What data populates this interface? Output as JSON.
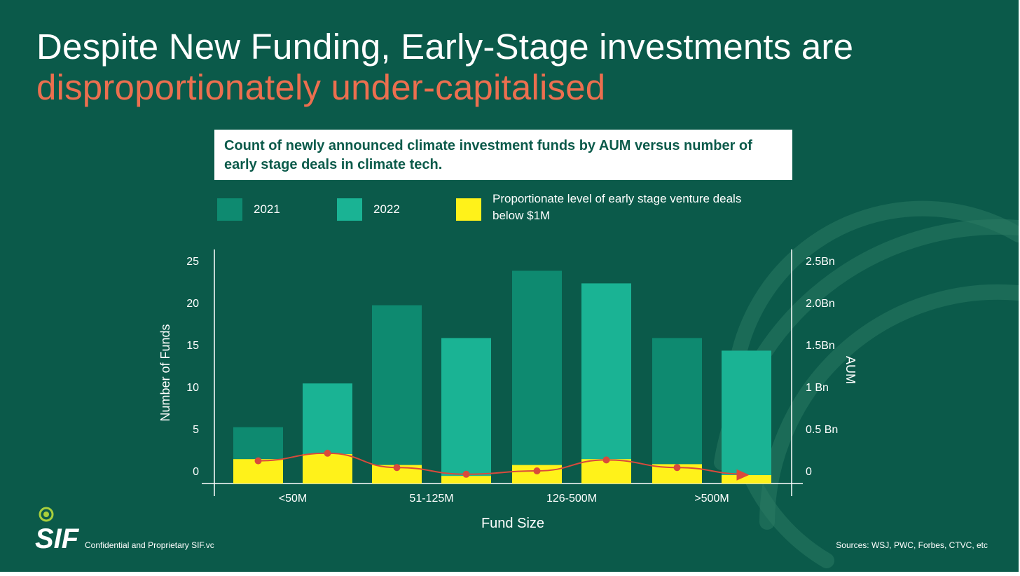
{
  "slide": {
    "title_line1": "Despite New Funding, Early-Stage investments are",
    "title_line2": "disproportionately under-capitalised",
    "subtitle": "Count of newly announced climate investment funds by AUM versus number of early stage deals in climate tech.",
    "footer_left": "Confidential and Proprietary SIF.vc",
    "footer_right": "Sources: WSJ, PWC, Forbes, CTVC, etc",
    "logo_text": "SIF"
  },
  "colors": {
    "background": "#0b5a4a",
    "accent": "#ec6f4f",
    "series_2021": "#0e8a70",
    "series_2022": "#1ab394",
    "early_stage": "#fff21a",
    "trend_line": "#d94a3c"
  },
  "legend": [
    {
      "label": "2021",
      "color": "#0e8a70"
    },
    {
      "label": "2022",
      "color": "#1ab394"
    },
    {
      "label": "Proportionate level of early stage venture deals below $1M",
      "color": "#fff21a"
    }
  ],
  "chart_data": {
    "type": "bar",
    "categories": [
      "<50M",
      "51-125M",
      "126-500M",
      ">500M"
    ],
    "series": [
      {
        "name": "2021",
        "values": [
          5.2,
          19.7,
          23.8,
          15.8
        ]
      },
      {
        "name": "2022",
        "values": [
          10.4,
          15.8,
          22.3,
          14.3
        ]
      },
      {
        "name": "Proportionate level of early stage venture deals below $1M",
        "values_2021": [
          1.4,
          0.7,
          0.7,
          0.8
        ],
        "values_2022": [
          2.0,
          -0.6,
          1.4,
          -0.5
        ]
      }
    ],
    "trend_line": [
      1.2,
      2.1,
      0.4,
      -0.4,
      0.0,
      1.3,
      0.4,
      -0.4
    ],
    "xlabel": "Fund Size",
    "ylabel": "Number of Funds",
    "y2label": "AUM",
    "ylim": [
      -1.5,
      26.5
    ],
    "yticks": [
      "0",
      "5",
      "10",
      "15",
      "20",
      "25"
    ],
    "y2ticks": [
      "0",
      "0.5 Bn",
      "1 Bn",
      "1.5Bn",
      "2.0Bn",
      "2.5Bn"
    ]
  }
}
